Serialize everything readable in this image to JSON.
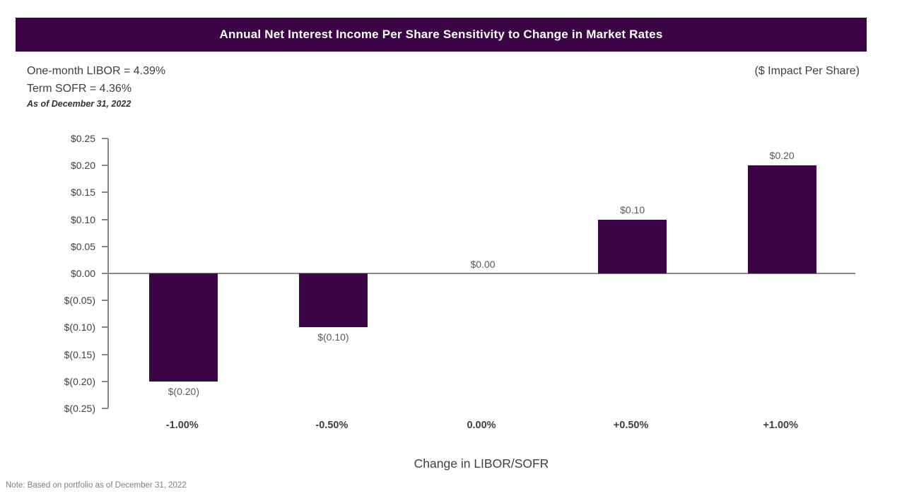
{
  "header": {
    "title": "Annual Net Interest Income Per Share Sensitivity to Change in Market Rates",
    "banner_color": "#3B0545"
  },
  "subheader": {
    "libor_line": "One-month LIBOR = 4.39%",
    "sofr_line": "Term SOFR = 4.36%",
    "as_of_line": "As of December 31, 2022",
    "impact_label": "($ Impact Per Share)"
  },
  "chart_data": {
    "type": "bar",
    "title": "Annual Net Interest Income Per Share Sensitivity to Change in Market Rates",
    "categories": [
      "-1.00%",
      "-0.50%",
      "0.00%",
      "+0.50%",
      "+1.00%"
    ],
    "values": [
      -0.2,
      -0.1,
      0.0,
      0.1,
      0.2
    ],
    "value_labels": [
      "$(0.20)",
      "$(0.10)",
      "$0.00",
      "$0.10",
      "$0.20"
    ],
    "xlabel": "Change in LIBOR/SOFR",
    "ylabel": "($ Impact Per Share)",
    "ylim": [
      -0.25,
      0.25
    ],
    "y_tick_step": 0.05,
    "y_tick_labels": [
      "$0.25",
      "$0.20",
      "$0.15",
      "$0.10",
      "$0.05",
      "$0.00",
      "$(0.05)",
      "$(0.10)",
      "$(0.15)",
      "$(0.20)",
      "$(0.25)"
    ],
    "bar_color": "#3B0545",
    "axis_color": "#8a8a8a",
    "grid": false,
    "legend": false
  },
  "footnote": "Note: Based on portfolio as of  December 31, 2022"
}
